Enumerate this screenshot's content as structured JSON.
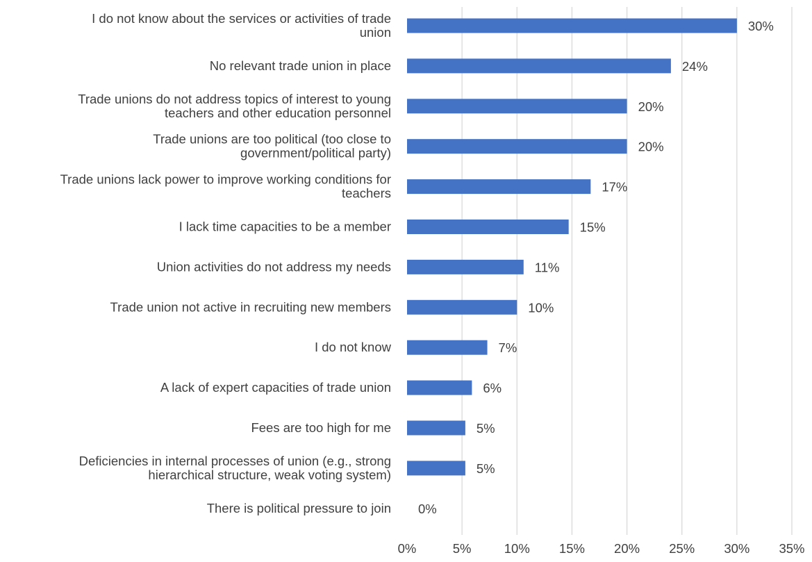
{
  "chart_data": {
    "type": "bar",
    "orientation": "horizontal",
    "categories": [
      [
        "I do not know about the services or activities of trade",
        "union"
      ],
      [
        "No relevant trade union in place"
      ],
      [
        "Trade unions do not address topics of interest to young",
        "teachers and other education personnel"
      ],
      [
        "Trade unions are too political (too close to",
        "government/political party)"
      ],
      [
        "Trade unions lack power to improve working conditions for",
        "teachers"
      ],
      [
        "I lack time capacities to be a member"
      ],
      [
        "Union activities do not address my needs"
      ],
      [
        "Trade union not active in recruiting new members"
      ],
      [
        "I do not know"
      ],
      [
        "A lack of expert capacities of trade union"
      ],
      [
        "Fees are too high for me"
      ],
      [
        "Deficiencies in internal processes of union (e.g., strong",
        "hierarchical structure, weak voting system)"
      ],
      [
        "There is political pressure to join"
      ]
    ],
    "values": [
      30,
      24,
      20,
      20,
      16.7,
      14.7,
      10.6,
      10,
      7.3,
      5.9,
      5.3,
      5.3,
      0
    ],
    "value_labels": [
      "30%",
      "24%",
      "20%",
      "20%",
      "17%",
      "15%",
      "11%",
      "10%",
      "7%",
      "6%",
      "5%",
      "5%",
      "0%"
    ],
    "xlim": [
      0,
      35
    ],
    "xticks": [
      0,
      5,
      10,
      15,
      20,
      25,
      30,
      35
    ],
    "xtick_labels": [
      "0%",
      "5%",
      "10%",
      "15%",
      "20%",
      "25%",
      "30%",
      "35%"
    ],
    "title": "",
    "xlabel": "",
    "ylabel": "",
    "grid": "vertical",
    "legend": "none",
    "colors": {
      "bar": "#4472C4",
      "grid": "#D9D9D9",
      "text": "#404040"
    }
  }
}
